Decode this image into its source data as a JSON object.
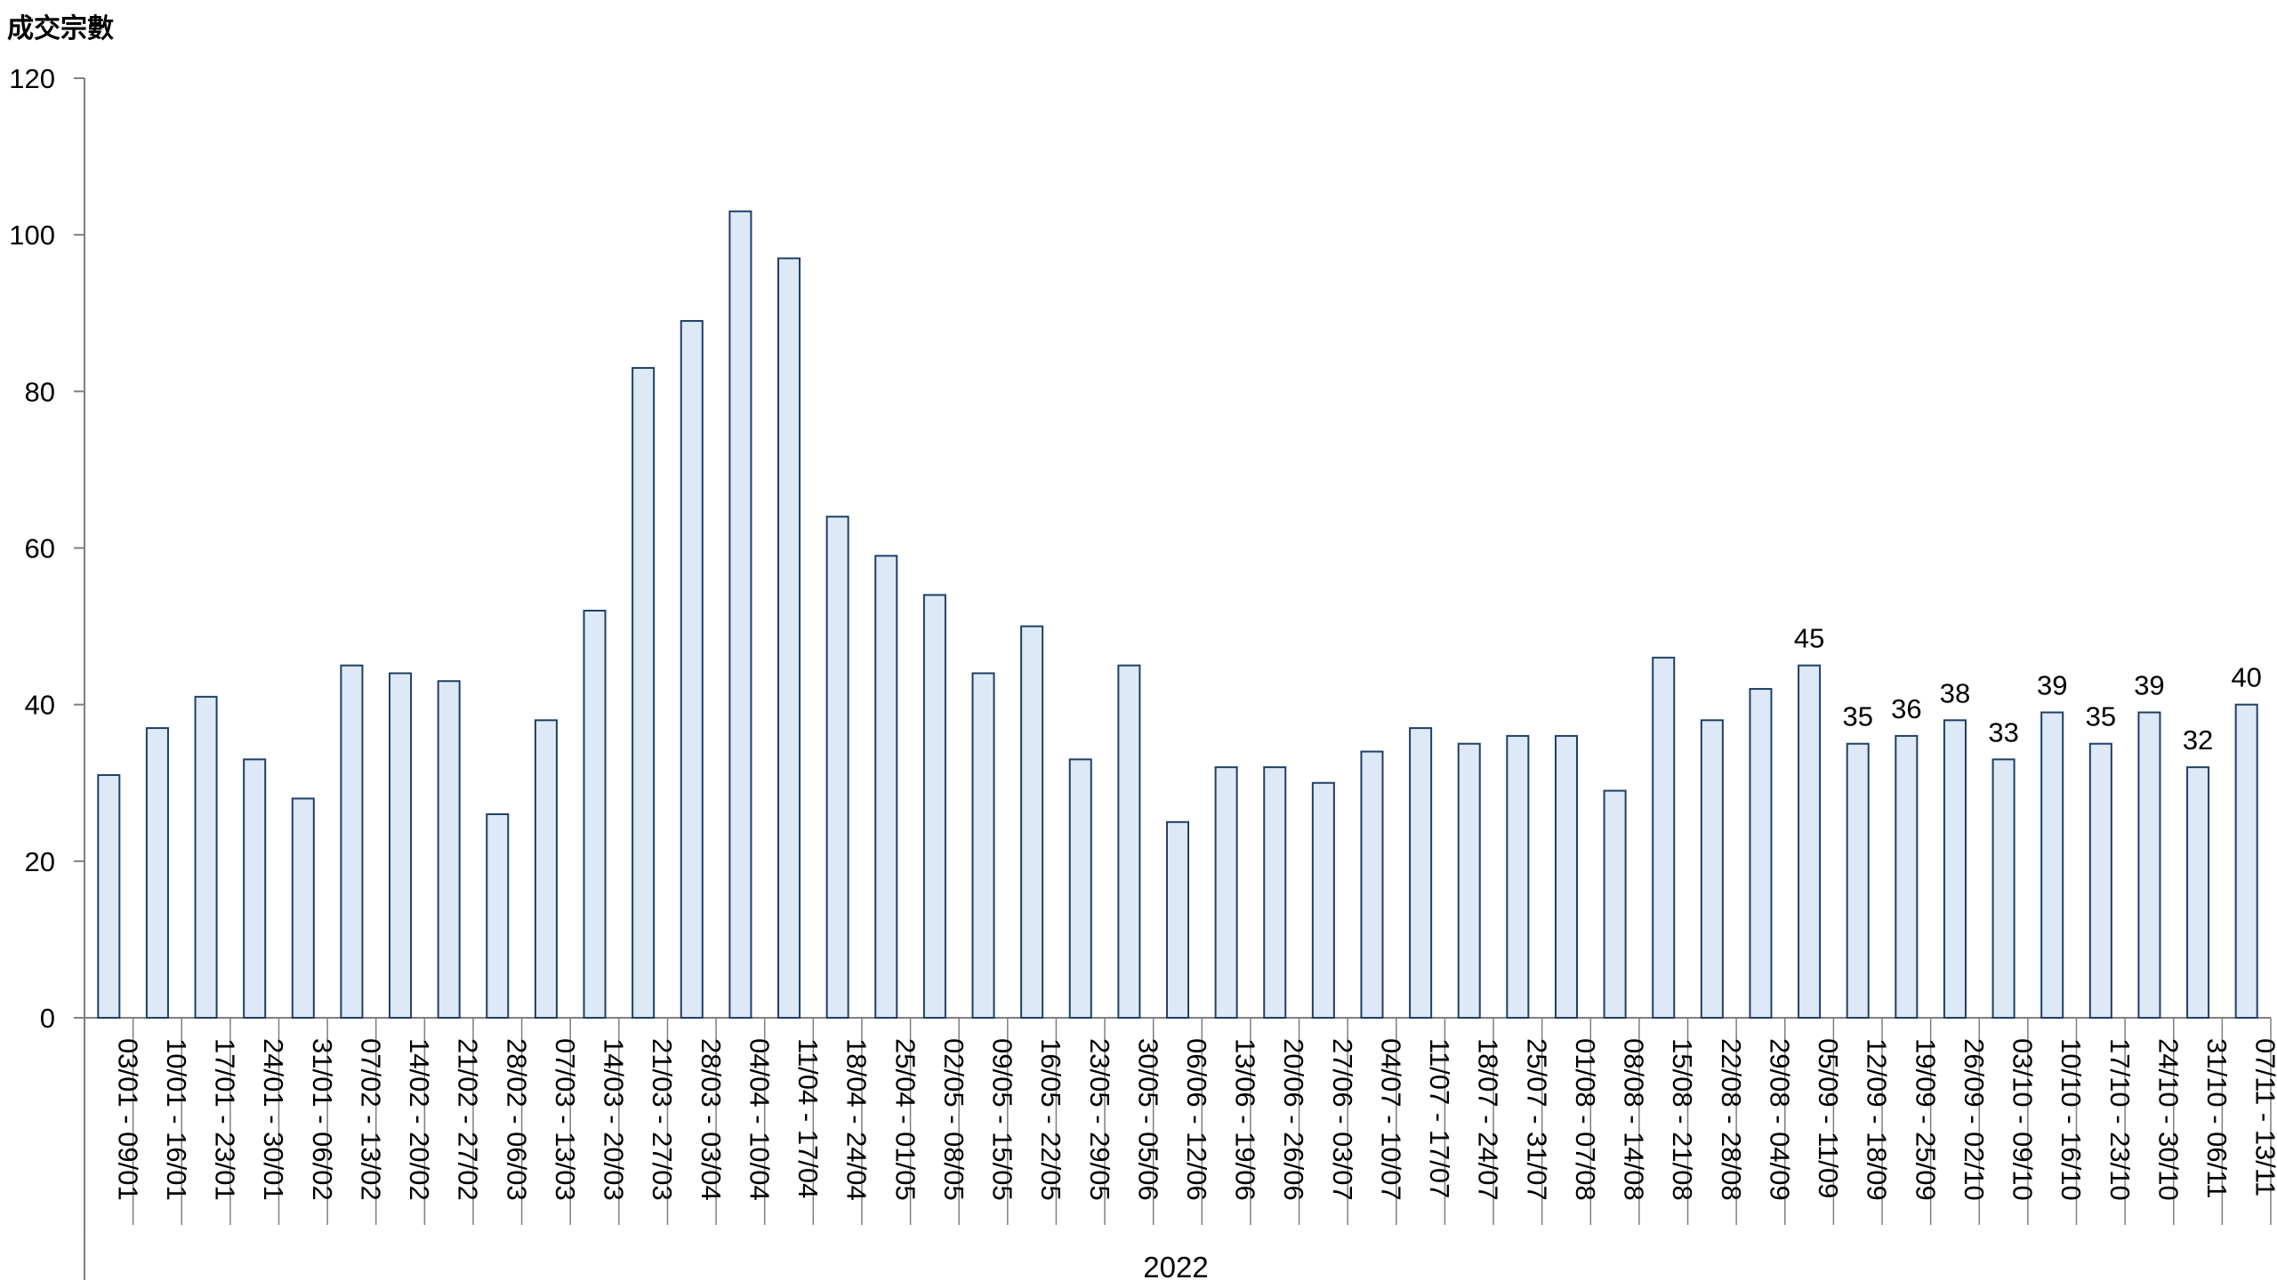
{
  "chart_data": {
    "type": "bar",
    "ylabel": "成交宗數",
    "group_label": "2022",
    "ylim": [
      0,
      120
    ],
    "yticks": [
      0,
      20,
      40,
      60,
      80,
      100,
      120
    ],
    "grid": false,
    "colors": {
      "bar_fill": "#dde9f6",
      "bar_stroke": "#1f3f66",
      "axis": "#7f7f7f"
    },
    "categories": [
      "03/01 - 09/01",
      "10/01 - 16/01",
      "17/01 - 23/01",
      "24/01 - 30/01",
      "31/01 - 06/02",
      "07/02 - 13/02",
      "14/02 - 20/02",
      "21/02 - 27/02",
      "28/02 - 06/03",
      "07/03 - 13/03",
      "14/03 - 20/03",
      "21/03 - 27/03",
      "28/03 - 03/04",
      "04/04 - 10/04",
      "11/04 - 17/04",
      "18/04 - 24/04",
      "25/04 - 01/05",
      "02/05 - 08/05",
      "09/05 - 15/05",
      "16/05 - 22/05",
      "23/05 - 29/05",
      "30/05 - 05/06",
      "06/06 - 12/06",
      "13/06 - 19/06",
      "20/06 - 26/06",
      "27/06 - 03/07",
      "04/07 - 10/07",
      "11/07 - 17/07",
      "18/07 - 24/07",
      "25/07 - 31/07",
      "01/08 - 07/08",
      "08/08 - 14/08",
      "15/08 - 21/08",
      "22/08 - 28/08",
      "29/08 - 04/09",
      "05/09 - 11/09",
      "12/09 - 18/09",
      "19/09 - 25/09",
      "26/09 - 02/10",
      "03/10 - 09/10",
      "10/10 - 16/10",
      "17/10 - 23/10",
      "24/10 - 30/10",
      "31/10 - 06/11",
      "07/11 - 13/11"
    ],
    "values": [
      31,
      37,
      41,
      33,
      28,
      45,
      44,
      43,
      26,
      38,
      52,
      83,
      89,
      103,
      97,
      64,
      59,
      54,
      44,
      50,
      33,
      45,
      25,
      32,
      32,
      30,
      34,
      37,
      35,
      36,
      36,
      29,
      46,
      38,
      42,
      45,
      35,
      36,
      38,
      33,
      39,
      35,
      39,
      32,
      40
    ],
    "data_labels": [
      {
        "index": 35,
        "text": "45"
      },
      {
        "index": 36,
        "text": "35"
      },
      {
        "index": 37,
        "text": "36"
      },
      {
        "index": 38,
        "text": "38"
      },
      {
        "index": 39,
        "text": "33"
      },
      {
        "index": 40,
        "text": "39"
      },
      {
        "index": 41,
        "text": "35"
      },
      {
        "index": 42,
        "text": "39"
      },
      {
        "index": 43,
        "text": "32"
      },
      {
        "index": 44,
        "text": "40"
      }
    ]
  }
}
